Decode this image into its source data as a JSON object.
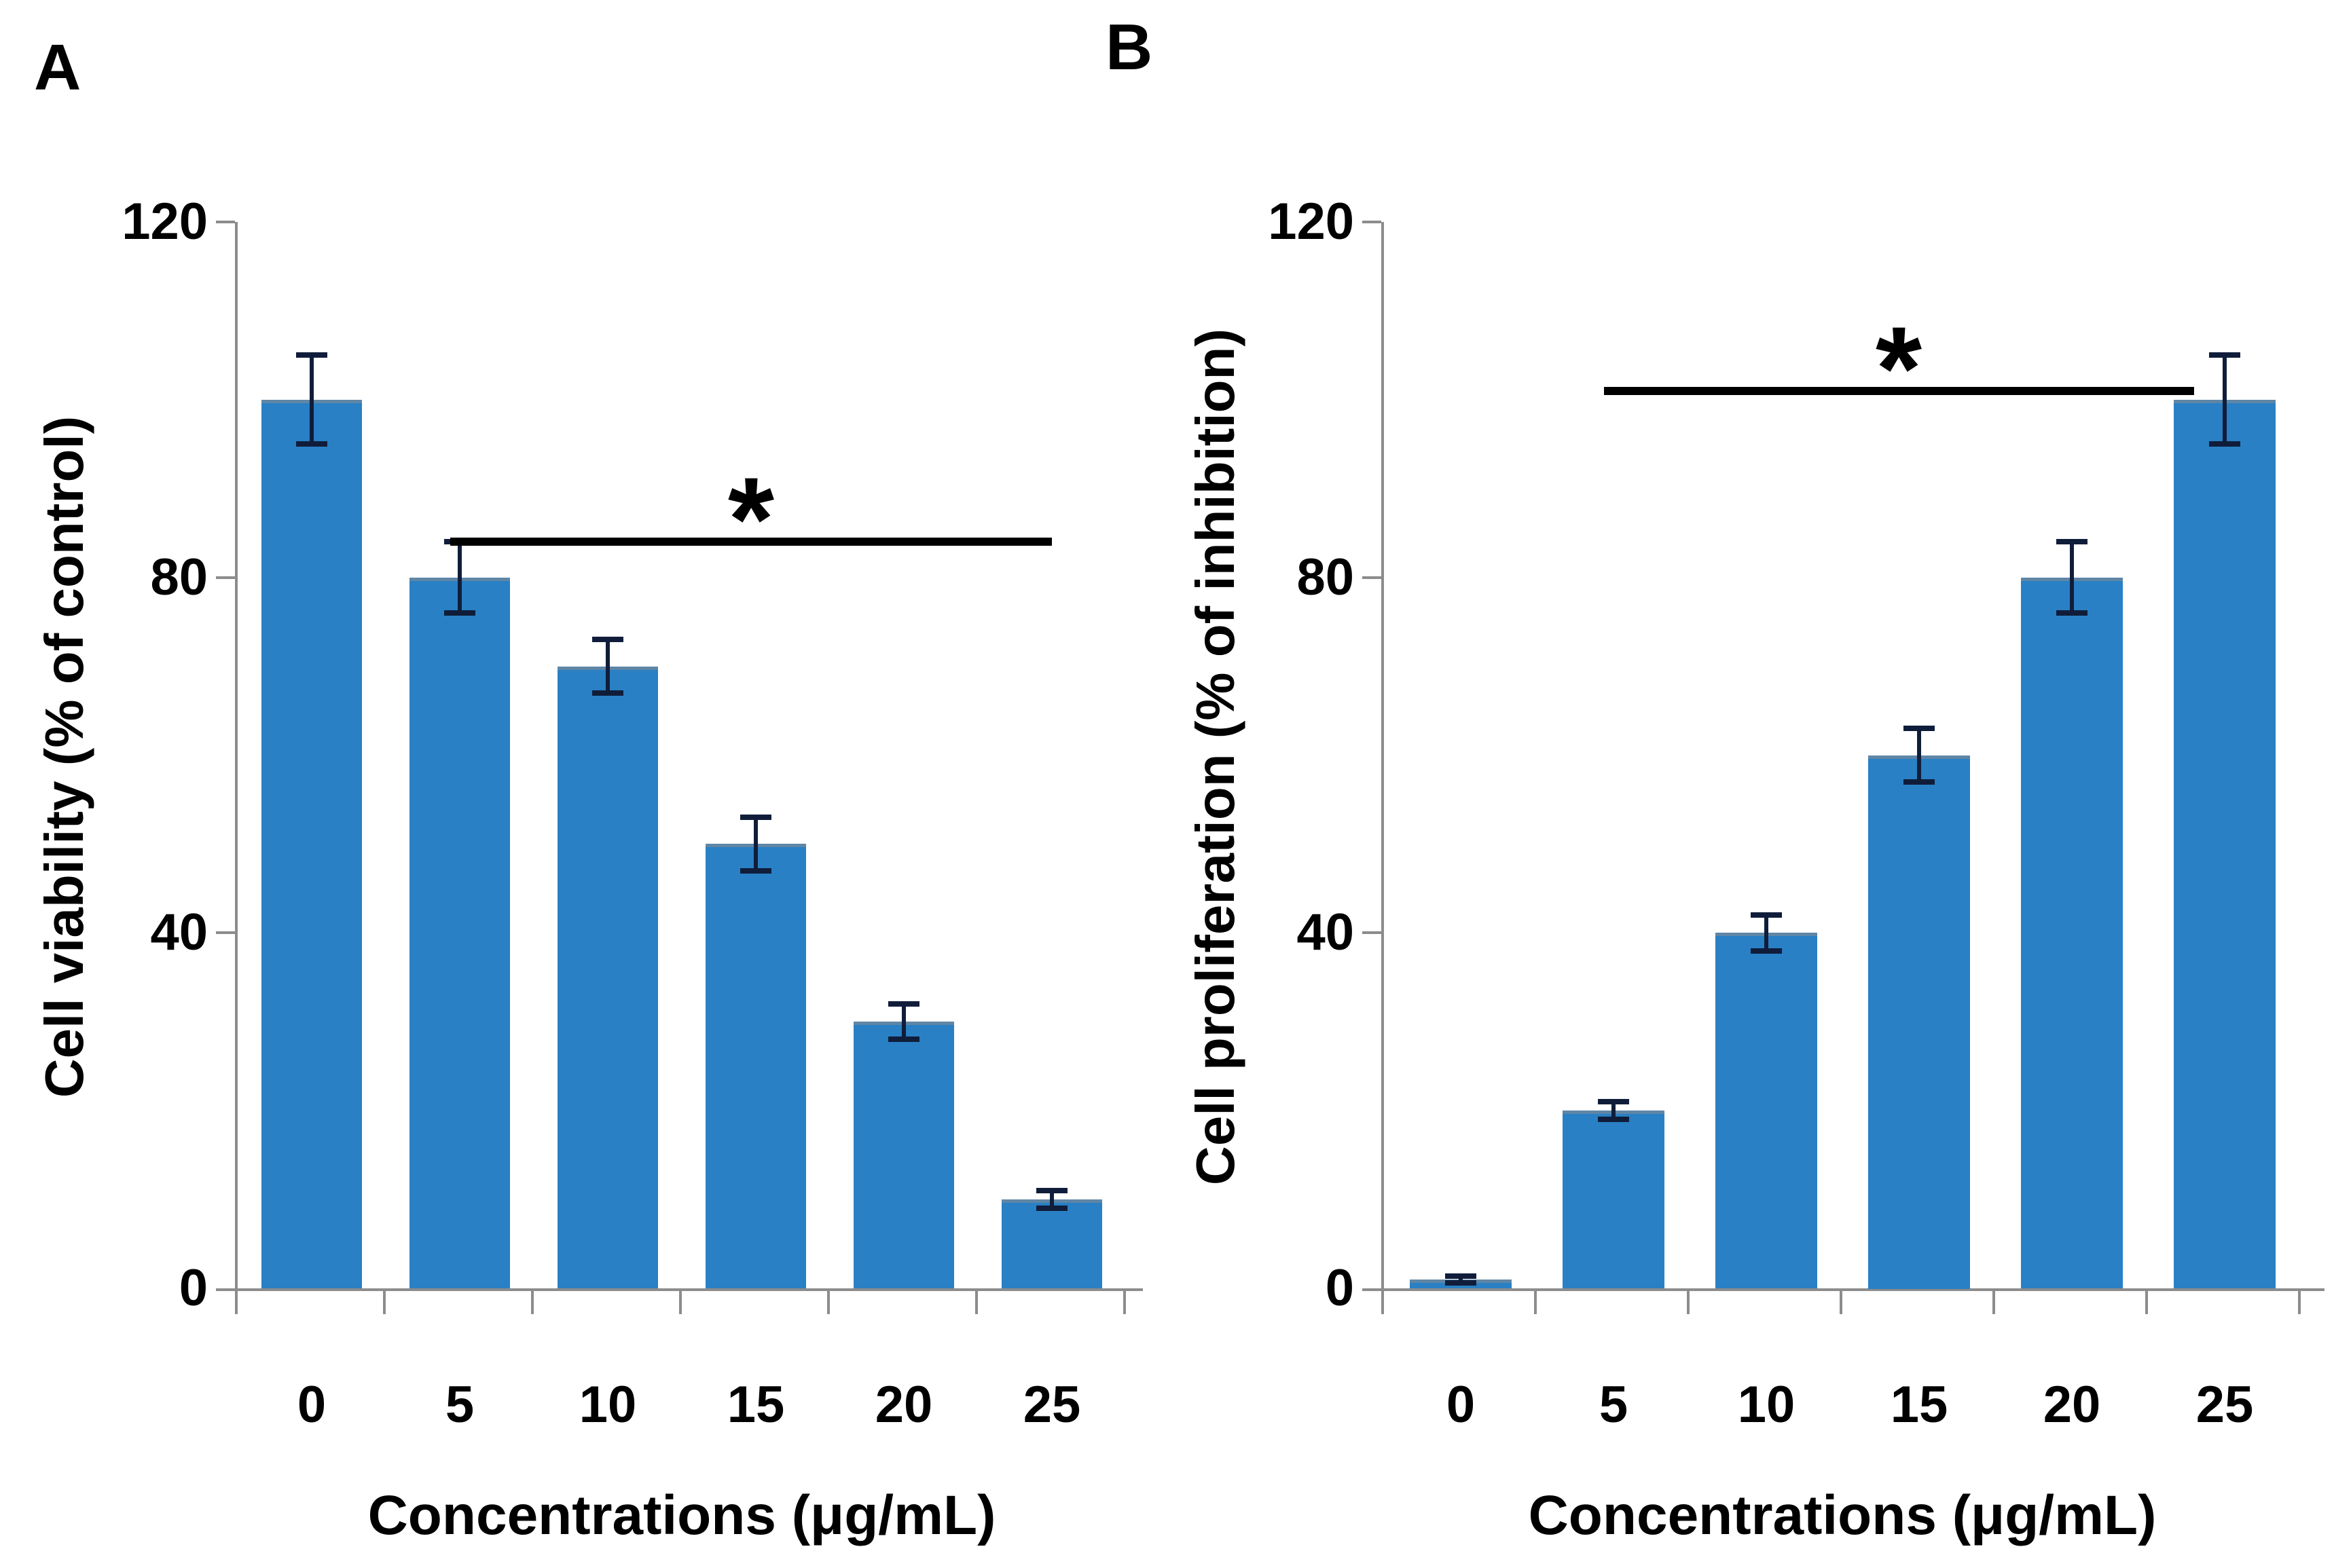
{
  "figure": {
    "background": "#ffffff"
  },
  "colors": {
    "bar": "#2980c4",
    "bar_top_edge": "#5f86a6",
    "error_bar": "#101d3a",
    "axis": "#8c8c8c",
    "significance": "#000000",
    "text": "#000000"
  },
  "chart_data": [
    {
      "type": "bar",
      "panel_label": "A",
      "title": "",
      "xlabel": "Concentrations (μg/mL)",
      "ylabel": "Cell viability (% of control)",
      "categories": [
        "0",
        "5",
        "10",
        "15",
        "20",
        "25"
      ],
      "values": [
        100,
        80,
        70,
        50,
        30,
        10
      ],
      "errors": [
        5,
        4,
        3,
        3,
        2,
        1
      ],
      "y_ticks": [
        0,
        40,
        80,
        120
      ],
      "ylim": [
        0,
        120
      ],
      "grid": false,
      "legend": "none",
      "significance": {
        "label": "*",
        "from_category": "5",
        "to_category": "25",
        "y_value": 84
      }
    },
    {
      "type": "bar",
      "panel_label": "B",
      "title": "",
      "xlabel": "Concentrations (μg/mL)",
      "ylabel": "Cell proliferation (% of inhibition)",
      "categories": [
        "0",
        "5",
        "10",
        "15",
        "20",
        "25"
      ],
      "values": [
        1,
        20,
        40,
        60,
        80,
        100
      ],
      "errors": [
        0.4,
        1,
        2,
        3,
        4,
        5
      ],
      "y_ticks": [
        0,
        40,
        80,
        120
      ],
      "ylim": [
        0,
        120
      ],
      "grid": false,
      "legend": "none",
      "significance": {
        "label": "*",
        "from_category": "5",
        "to_category": "25",
        "y_value": 101
      }
    }
  ]
}
